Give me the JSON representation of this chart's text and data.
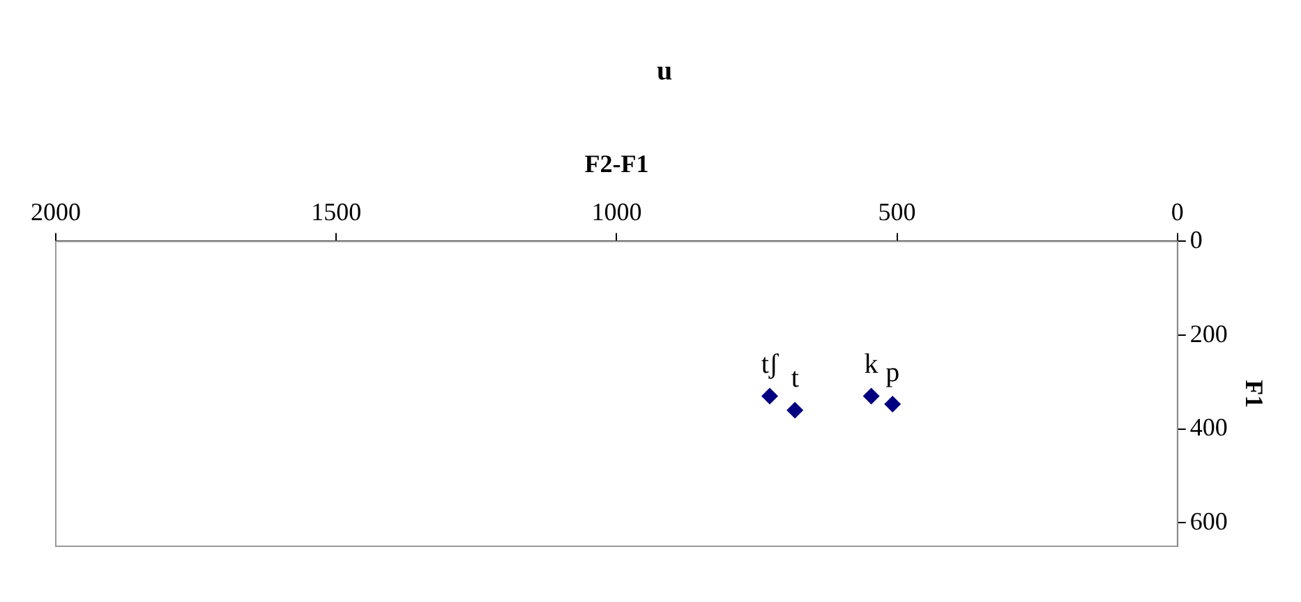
{
  "chart_data": {
    "type": "scatter",
    "title": "u",
    "xlabel": "F2-F1",
    "ylabel": "F1",
    "x": [
      727,
      682,
      546,
      508
    ],
    "series": [
      {
        "color": "#000080",
        "values": [
          330,
          360,
          330,
          347
        ]
      }
    ],
    "xlim": [
      2000,
      0
    ],
    "xticks": [
      2000,
      1500,
      1000,
      500,
      0
    ],
    "ylim": [
      650,
      0
    ],
    "yticks": [
      0,
      200,
      400,
      600
    ],
    "marker": "diamond",
    "grid": false,
    "legend": false,
    "annotations": [
      {
        "text": "tʃ",
        "x": 727,
        "y": 330
      },
      {
        "text": "t",
        "x": 682,
        "y": 360
      },
      {
        "text": "k",
        "x": 546,
        "y": 330
      },
      {
        "text": "p",
        "x": 508,
        "y": 347
      }
    ]
  }
}
